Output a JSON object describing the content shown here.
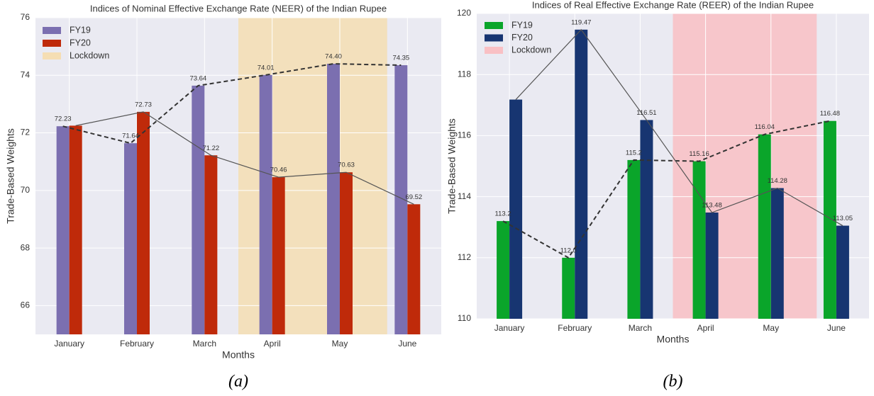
{
  "chart_data": [
    {
      "type": "bar",
      "title": "Indices of Nominal Effective Exchange Rate (NEER) of the Indian Rupee",
      "x_label": "Months",
      "y_label": "Trade-Based Weights",
      "categories": [
        "January",
        "February",
        "March",
        "April",
        "May",
        "June"
      ],
      "series": [
        {
          "name": "FY19",
          "color": "#7b6fb0",
          "line": "dashed",
          "values": [
            72.23,
            71.64,
            73.64,
            74.01,
            74.4,
            74.35
          ],
          "value_labels": [
            "72.23",
            "71.64",
            "73.64",
            "74.01",
            "74.40",
            "74.35"
          ]
        },
        {
          "name": "FY20",
          "color": "#bf2a0a",
          "line": "solid",
          "values": [
            72.25,
            72.73,
            71.22,
            70.46,
            70.63,
            69.52
          ],
          "value_labels": [
            null,
            "72.73",
            "71.22",
            "70.46",
            "70.63",
            "69.52"
          ]
        }
      ],
      "shade": {
        "name": "Lockdown",
        "color": "#f5deb3",
        "span": [
          2.5,
          4.7
        ]
      },
      "ylim": [
        65,
        76
      ],
      "yticks": [
        66,
        68,
        70,
        72,
        74,
        76
      ],
      "grid": true,
      "legend": "upper left",
      "caption": "(a)"
    },
    {
      "type": "bar",
      "title": "Indices of Real Effective Exchange Rate (REER) of the Indian Rupee",
      "x_label": "Months",
      "y_label": "Trade-Based Weights",
      "categories": [
        "January",
        "February",
        "March",
        "April",
        "May",
        "June"
      ],
      "series": [
        {
          "name": "FY19",
          "color": "#0aa52a",
          "line": "dashed",
          "values": [
            113.2,
            112.0,
            115.2,
            115.16,
            116.04,
            116.48
          ],
          "value_labels": [
            "113.2",
            "112.0",
            "115.2",
            "115.16",
            "116.04",
            "116.48"
          ]
        },
        {
          "name": "FY20",
          "color": "#173571",
          "line": "solid",
          "values": [
            117.18,
            119.47,
            116.51,
            113.48,
            114.28,
            113.05
          ],
          "value_labels": [
            null,
            "119.47",
            "116.51",
            "113.48",
            "114.28",
            "113.05"
          ]
        }
      ],
      "shade": {
        "name": "Lockdown",
        "color": "#f9c0c4",
        "span": [
          2.5,
          4.7
        ]
      },
      "ylim": [
        110,
        120
      ],
      "yticks": [
        110,
        112,
        114,
        116,
        118,
        120
      ],
      "grid": true,
      "legend": "upper left",
      "caption": "(b)"
    }
  ]
}
